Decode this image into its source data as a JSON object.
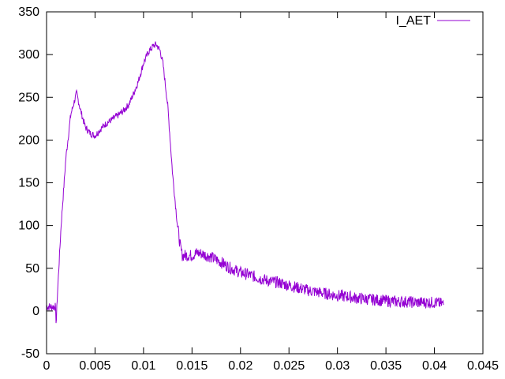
{
  "chart_data": {
    "type": "line",
    "title": "",
    "xlabel": "",
    "ylabel": "",
    "xlim": [
      0,
      0.045
    ],
    "ylim": [
      -50,
      350
    ],
    "x_ticks": [
      0,
      0.005,
      0.01,
      0.015,
      0.02,
      0.025,
      0.03,
      0.035,
      0.04,
      0.045
    ],
    "x_tick_labels": [
      "0",
      "0.005",
      "0.01",
      "0.015",
      "0.02",
      "0.025",
      "0.03",
      "0.035",
      "0.04",
      "0.045"
    ],
    "y_ticks": [
      -50,
      0,
      50,
      100,
      150,
      200,
      250,
      300,
      350
    ],
    "y_tick_labels": [
      "-50",
      "0",
      "50",
      "100",
      "150",
      "200",
      "250",
      "300",
      "350"
    ],
    "grid": false,
    "legend_position": "top-right",
    "series": [
      {
        "name": "I_AET",
        "color": "#9400d3",
        "ripple_noise": true,
        "points": [
          [
            0,
            5
          ],
          [
            0.0005,
            5
          ],
          [
            0.0009,
            5
          ],
          [
            0.001,
            -15
          ],
          [
            0.0011,
            15
          ],
          [
            0.0015,
            100
          ],
          [
            0.002,
            180
          ],
          [
            0.0025,
            230
          ],
          [
            0.0031,
            255
          ],
          [
            0.0035,
            235
          ],
          [
            0.004,
            215
          ],
          [
            0.0045,
            208
          ],
          [
            0.005,
            205
          ],
          [
            0.0055,
            212
          ],
          [
            0.006,
            218
          ],
          [
            0.0065,
            222
          ],
          [
            0.007,
            226
          ],
          [
            0.0075,
            230
          ],
          [
            0.008,
            235
          ],
          [
            0.0085,
            242
          ],
          [
            0.009,
            255
          ],
          [
            0.0095,
            270
          ],
          [
            0.01,
            290
          ],
          [
            0.0105,
            303
          ],
          [
            0.011,
            310
          ],
          [
            0.0113,
            312
          ],
          [
            0.0117,
            305
          ],
          [
            0.012,
            290
          ],
          [
            0.0125,
            240
          ],
          [
            0.013,
            160
          ],
          [
            0.0135,
            100
          ],
          [
            0.0138,
            75
          ],
          [
            0.014,
            65
          ],
          [
            0.0145,
            65
          ],
          [
            0.015,
            65
          ],
          [
            0.0155,
            68
          ],
          [
            0.016,
            67
          ],
          [
            0.017,
            63
          ],
          [
            0.018,
            57
          ],
          [
            0.019,
            50
          ],
          [
            0.02,
            45
          ],
          [
            0.021,
            42
          ],
          [
            0.022,
            38
          ],
          [
            0.023,
            35
          ],
          [
            0.024,
            33
          ],
          [
            0.025,
            30
          ],
          [
            0.026,
            27
          ],
          [
            0.027,
            24
          ],
          [
            0.028,
            22
          ],
          [
            0.029,
            20
          ],
          [
            0.03,
            18
          ],
          [
            0.031,
            17
          ],
          [
            0.032,
            15
          ],
          [
            0.033,
            14
          ],
          [
            0.034,
            13
          ],
          [
            0.035,
            12
          ],
          [
            0.036,
            11
          ],
          [
            0.037,
            11
          ],
          [
            0.038,
            10
          ],
          [
            0.039,
            10
          ],
          [
            0.04,
            10
          ],
          [
            0.041,
            8
          ]
        ]
      }
    ]
  }
}
